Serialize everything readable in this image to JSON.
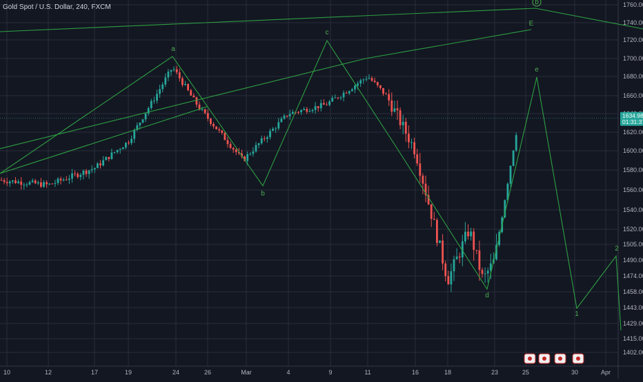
{
  "header": {
    "symbol_title": "Gold Spot / U.S. Dollar, 240, FXCM"
  },
  "price_axis": {
    "ticks": [
      "1760.00",
      "1740.00",
      "1720.00",
      "1700.00",
      "1680.00",
      "1660.00",
      "1640.00",
      "1620.00",
      "1600.00",
      "1580.00",
      "1560.00",
      "1540.00",
      "1520.00",
      "1505.00",
      "1490.00",
      "1474.00",
      "1458.00",
      "1443.00",
      "1429.00",
      "1415.00",
      "1402.00"
    ],
    "current_price": "1634.98",
    "countdown": "01:31:37"
  },
  "time_axis": {
    "ticks": [
      "10",
      "12",
      "17",
      "19",
      "24",
      "26",
      "Mar",
      "4",
      "9",
      "11",
      "16",
      "18",
      "23",
      "25",
      "30",
      "Apr"
    ]
  },
  "wave_labels": {
    "a": "a",
    "b": "b",
    "c": "c",
    "d": "d",
    "e": "e",
    "E": "E",
    "circled_b": "b",
    "one": "1",
    "two": "2"
  },
  "colors": {
    "background": "#131722",
    "grid": "#2a2e39",
    "bull": "#26a69a",
    "bear": "#ef5350",
    "wave": "#2ea043",
    "label": "#4caf50",
    "price_tag": "#26a69a"
  },
  "event_badges": [
    "flag-badge",
    "flag-badge",
    "flag-badge",
    "flag-badge"
  ],
  "chart_data": {
    "type": "candlestick",
    "title": "Gold Spot / U.S. Dollar, 240, FXCM",
    "y_range": [
      1400,
      1766
    ],
    "last_price": 1634.98,
    "series": [
      {
        "name": "price_anchors",
        "x": [
          "Feb 10",
          "Feb 14",
          "Feb 18",
          "Feb 20",
          "Feb 24",
          "Feb 27",
          "Mar 2",
          "Mar 4",
          "Mar 6",
          "Mar 9",
          "Mar 11",
          "Mar 13",
          "Mar 16",
          "Mar 18",
          "Mar 20",
          "Mar 23",
          "Mar 24"
        ],
        "values": [
          1570,
          1565,
          1582,
          1610,
          1690,
          1645,
          1590,
          1640,
          1650,
          1680,
          1660,
          1600,
          1470,
          1520,
          1470,
          1490,
          1635
        ]
      },
      {
        "name": "wave_abcde",
        "points": [
          [
            "Feb 24",
            1702
          ],
          [
            "Mar 2",
            1563
          ],
          [
            "Mar 9",
            1700
          ],
          [
            "Mar 23",
            1465
          ],
          [
            "Mar 25",
            1680
          ],
          [
            "Mar 30",
            1443
          ],
          [
            "Apr 1",
            1492
          ],
          [
            "Apr 1",
            1424
          ]
        ]
      }
    ]
  }
}
